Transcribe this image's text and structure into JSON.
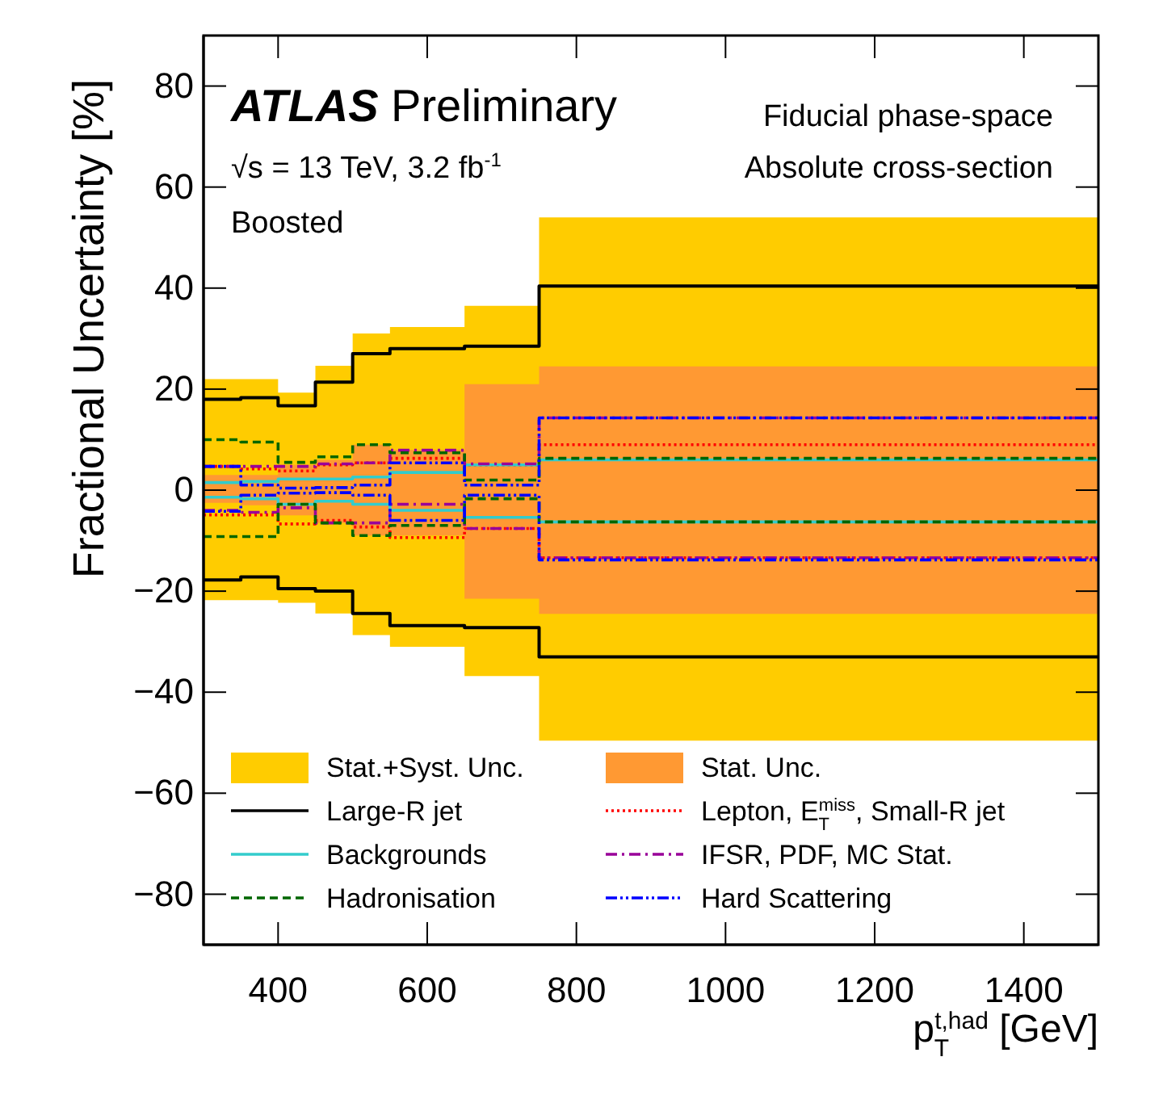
{
  "chart_data": {
    "type": "step",
    "xlabel": "p$_{T}$$^{t,had}$ [GeV]",
    "ylabel": "Fractional Uncertainty [%]",
    "annotations": [
      "ATLAS Preliminary",
      "√s = 13 TeV, 3.2 fb$^{-1}$",
      "Boosted",
      "Fiducial phase-space",
      "Absolute cross-section"
    ],
    "x": [
      300,
      350,
      400,
      450,
      500,
      550,
      650,
      750,
      1500
    ],
    "xlim": [
      300,
      1500
    ],
    "xticks": [
      400,
      600,
      800,
      1000,
      1200,
      1400
    ],
    "ylim": [
      -90,
      90
    ],
    "yticks": [
      {
        "value": -80,
        "label": "−80"
      },
      {
        "value": -60,
        "label": "−60"
      },
      {
        "value": -40,
        "label": "−40"
      },
      {
        "value": -20,
        "label": "−20"
      },
      0,
      20,
      40,
      60,
      80
    ],
    "legend": "bottom",
    "grid": false,
    "series": [
      {
        "name": "Stat.+Syst. Unc.",
        "type": "area",
        "color": "#ffcc00",
        "values": [
          22,
          22,
          19.3,
          24.6,
          31,
          32.3,
          36.5,
          54,
          54
        ]
      },
      {
        "type": "area",
        "color": "#ffcc00",
        "values": [
          -21.8,
          -21.8,
          -22.3,
          -24.4,
          -28.7,
          -31,
          -36.8,
          -49.6,
          -49.6
        ]
      },
      {
        "name": "Stat. Unc.",
        "type": "area",
        "color": "#ff9933",
        "values": [
          3,
          3,
          5,
          6,
          9,
          8,
          21,
          24.5,
          24.5
        ]
      },
      {
        "type": "area",
        "color": "#ff9933",
        "values": [
          -2.5,
          -3,
          -5,
          -6.5,
          -9,
          -9,
          -21.5,
          -24.5,
          -24.5
        ]
      },
      {
        "name": "Large-R jet",
        "color": "#000000",
        "line_style": "solid",
        "values": [
          18,
          18.3,
          16.7,
          21.4,
          27,
          28,
          28.5,
          40.4,
          40.4
        ]
      },
      {
        "name": "Lepton, E$_{T}$$^{miss}$, Small-R jet",
        "color": "#ff0000",
        "line_style": "dotted",
        "values": [
          4.7,
          4.2,
          3.8,
          5,
          5.4,
          6.3,
          5,
          9,
          9
        ]
      },
      {
        "name": "Backgrounds",
        "color": "#33cccc",
        "line_style": "solid",
        "values": [
          1.5,
          1.7,
          2.2,
          2.2,
          2.6,
          3.5,
          5,
          6,
          6
        ]
      },
      {
        "name": "IFSR, PDF, MC Stat.",
        "color": "#990099",
        "line_style": "dashdot",
        "values": [
          4.7,
          4.7,
          4.7,
          5.2,
          5.4,
          7.9,
          5.2,
          14.3,
          14.3
        ]
      },
      {
        "name": "Hadronisation",
        "color": "#006600",
        "line_style": "dashed",
        "values": [
          10,
          9.5,
          5.5,
          6.6,
          9,
          7.4,
          2,
          6.3,
          6.3
        ]
      },
      {
        "name": "Hard Scattering",
        "color": "#0000ff",
        "line_style": "dashdotdot",
        "values": [
          4.7,
          1,
          0.4,
          0.5,
          1,
          5.4,
          1,
          14.3,
          14.3
        ]
      },
      {
        "color": "#000000",
        "line_style": "solid",
        "values": [
          -17.8,
          -17.2,
          -19.5,
          -20,
          -24.4,
          -26.8,
          -27.2,
          -33,
          -33
        ]
      },
      {
        "color": "#ff0000",
        "line_style": "dotted",
        "values": [
          -4.9,
          -4.9,
          -6.7,
          -6,
          -7.3,
          -9.4,
          -7.6,
          -13.4,
          -13.4
        ]
      },
      {
        "color": "#33cccc",
        "line_style": "solid",
        "values": [
          -1.4,
          -1.7,
          -2.8,
          -2.2,
          -2.8,
          -4,
          -5.4,
          -6.3,
          -6.3
        ]
      },
      {
        "color": "#990099",
        "line_style": "dashdot",
        "values": [
          -4,
          -4.4,
          -3.5,
          -6.5,
          -6.5,
          -2.8,
          -7.6,
          -13.4,
          -13.4
        ]
      },
      {
        "color": "#006600",
        "line_style": "dashed",
        "values": [
          -9.2,
          -9.2,
          -2.8,
          -6.5,
          -9,
          -7,
          -1.7,
          -6.3,
          -6.3
        ]
      },
      {
        "color": "#0000ff",
        "line_style": "dashdotdot",
        "values": [
          -4.2,
          -1,
          -0.6,
          -0.5,
          -1,
          -6,
          -1,
          -13.8,
          -13.8
        ]
      }
    ]
  }
}
